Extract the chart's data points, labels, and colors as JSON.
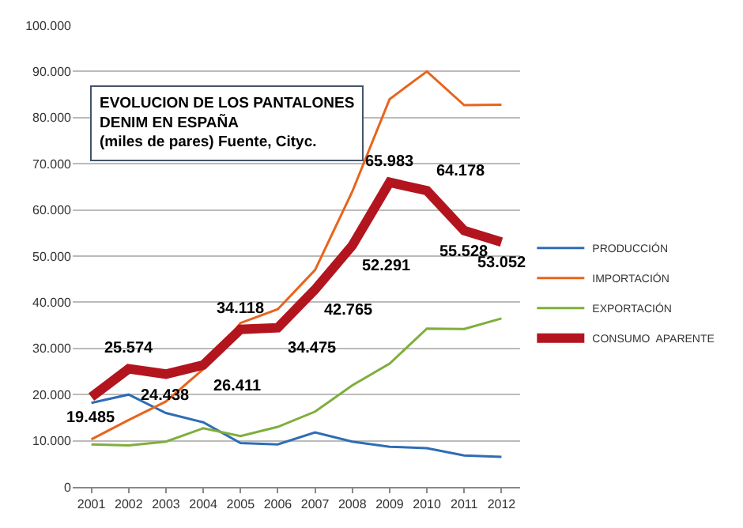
{
  "chart_data": {
    "type": "line",
    "title": "EVOLUCION DE LOS PANTALONES DENIM EN ESPAÑA",
    "subtitle": "(miles de pares) Fuente, Cityc.",
    "categories": [
      "2001",
      "2002",
      "2003",
      "2004",
      "2005",
      "2006",
      "2007",
      "2008",
      "2009",
      "2010",
      "2011",
      "2012"
    ],
    "series": [
      {
        "name": "PRODUCCIÓN",
        "color": "#2e6db4",
        "values": [
          18200,
          20000,
          16000,
          14000,
          9500,
          9200,
          11800,
          9800,
          8700,
          8400,
          6800,
          6500
        ]
      },
      {
        "name": "IMPORTACIÓN",
        "color": "#e8641c",
        "values": [
          10300,
          14500,
          18500,
          25500,
          35500,
          38500,
          47000,
          64000,
          84000,
          90000,
          82700,
          82800
        ]
      },
      {
        "name": "EXPORTACIÓN",
        "color": "#7fae3c",
        "values": [
          9200,
          9000,
          9800,
          12700,
          11000,
          13000,
          16300,
          22000,
          26700,
          34300,
          34200,
          36500
        ]
      },
      {
        "name": "CONSUMO  APARENTE",
        "color": "#b3151f",
        "values": [
          19485,
          25574,
          24438,
          26411,
          34118,
          34475,
          42765,
          52291,
          65983,
          64178,
          55528,
          53052
        ],
        "value_labels": [
          "19.485",
          "25.574",
          "24.438",
          "26.411",
          "34.118",
          "34.475",
          "42.765",
          "52.291",
          "65.983",
          "64.178",
          "55.528",
          "53.052"
        ]
      }
    ],
    "ylim": [
      0,
      100000
    ],
    "yticks": [
      0,
      {
        "value": 10000,
        "label": "10.000"
      },
      {
        "value": 20000,
        "label": "20.000"
      },
      {
        "value": 30000,
        "label": "30.000"
      },
      {
        "value": 40000,
        "label": "40.000"
      },
      {
        "value": 50000,
        "label": "50.000"
      },
      {
        "value": 60000,
        "label": "60.000"
      },
      {
        "value": 70000,
        "label": "70.000"
      },
      {
        "value": 80000,
        "label": "80.000"
      },
      {
        "value": 90000,
        "label": "90.000"
      },
      {
        "value": 100000,
        "label": "100.000"
      }
    ],
    "grid": "y",
    "legend": "right",
    "line_style": "solid"
  }
}
